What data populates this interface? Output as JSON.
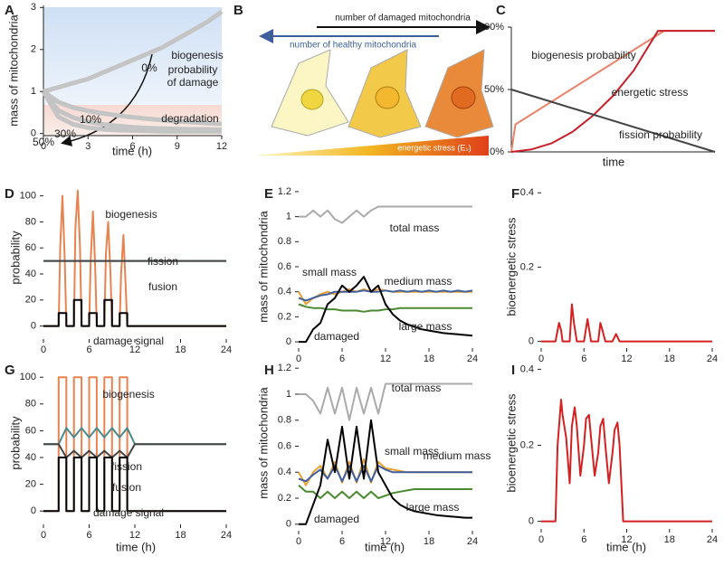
{
  "diagram": {
    "panel": "B",
    "damaged_label": "number of damaged mitochondria",
    "healthy_label": "number of healthy mitochondria",
    "stress_label": "energetic stress (Eₛ)"
  },
  "chart_data": [
    {
      "type": "line",
      "panel": "A",
      "xlabel": "time (h)",
      "ylabel": "mass of mitochondria",
      "annotations": [
        "biogenesis",
        "probability",
        "of damage",
        "degradation"
      ],
      "x": [
        0,
        1,
        2,
        3,
        4,
        5,
        6,
        7,
        8,
        9,
        10,
        11,
        12
      ],
      "xlim": [
        0,
        12
      ],
      "xticks": [
        0,
        3,
        6,
        9,
        12
      ],
      "ylim": [
        -0.05,
        3.05
      ],
      "yticks": [
        0,
        1,
        2,
        3
      ],
      "series": [
        {
          "name": "0%",
          "color": "#c4c4c4",
          "values": [
            1,
            1.1,
            1.2,
            1.3,
            1.45,
            1.6,
            1.75,
            1.9,
            2.05,
            2.25,
            2.45,
            2.65,
            2.9
          ]
        },
        {
          "name": "10%",
          "color": "#c4c4c4",
          "values": [
            1,
            0.75,
            0.62,
            0.54,
            0.48,
            0.43,
            0.39,
            0.35,
            0.32,
            0.29,
            0.27,
            0.25,
            0.23
          ]
        },
        {
          "name": "30%",
          "color": "#c4c4c4",
          "values": [
            1,
            0.55,
            0.38,
            0.28,
            0.22,
            0.18,
            0.15,
            0.13,
            0.12,
            0.11,
            0.1,
            0.1,
            0.09
          ]
        },
        {
          "name": "50%",
          "color": "#c4c4c4",
          "values": [
            1,
            0.4,
            0.22,
            0.14,
            0.1,
            0.08,
            0.07,
            0.06,
            0.05,
            0.05,
            0.05,
            0.05,
            0.05
          ]
        }
      ]
    },
    {
      "type": "line",
      "panel": "C",
      "xlabel": "time",
      "xlim": [
        0,
        1
      ],
      "ylim": [
        0,
        100
      ],
      "yticks": [
        {
          "value": 0,
          "label": "0%"
        },
        {
          "value": 50,
          "label": "50%"
        },
        {
          "value": 100,
          "label": "100%"
        }
      ],
      "series": [
        {
          "name": "biogenesis probability",
          "color": "#e8836a",
          "x": [
            0,
            0.02,
            0.75,
            1
          ],
          "values": [
            0,
            22,
            97,
            97
          ]
        },
        {
          "name": "energetic stress",
          "color": "#c8202a",
          "x": [
            0,
            0.1,
            0.2,
            0.3,
            0.4,
            0.5,
            0.6,
            0.72,
            1
          ],
          "values": [
            0,
            2,
            7,
            16,
            29,
            45,
            65,
            97,
            97
          ]
        },
        {
          "name": "fission probability",
          "color": "#444444",
          "x": [
            0,
            1
          ],
          "values": [
            50,
            0
          ]
        }
      ]
    },
    {
      "type": "line",
      "panel": "D",
      "ylabel": "probability",
      "xlim": [
        0,
        24
      ],
      "xticks": [
        0,
        6,
        12,
        18,
        24
      ],
      "ylim": [
        -10,
        115
      ],
      "yticks": [
        0,
        20,
        40,
        60,
        80,
        100
      ],
      "series": [
        {
          "name": "biogenesis",
          "color": "#e8834f",
          "x": [
            0,
            2,
            2.2,
            2.5,
            2.8,
            3,
            4,
            4.2,
            4.5,
            4.8,
            5,
            6,
            6.2,
            6.5,
            6.8,
            7,
            8,
            8.2,
            8.5,
            8.8,
            9,
            10,
            10.2,
            10.5,
            10.8,
            11,
            24
          ],
          "values": [
            0,
            0,
            60,
            100,
            50,
            0,
            0,
            75,
            104,
            60,
            0,
            0,
            50,
            88,
            45,
            0,
            0,
            55,
            80,
            40,
            0,
            0,
            40,
            70,
            30,
            0,
            0
          ]
        },
        {
          "name": "fission",
          "color": "#4a8a8c",
          "x": [
            0,
            24
          ],
          "values": [
            50,
            50
          ]
        },
        {
          "name": "fusion",
          "color": "#444444",
          "x": [
            0,
            24
          ],
          "values": [
            50,
            50
          ]
        },
        {
          "name": "damage signal",
          "color": "#000000",
          "x": [
            0,
            2,
            2,
            3,
            3,
            4,
            4,
            5,
            5,
            6,
            6,
            7,
            7,
            8,
            8,
            9,
            9,
            10,
            10,
            11,
            11,
            24
          ],
          "values": [
            0,
            0,
            10,
            10,
            0,
            0,
            20,
            20,
            0,
            0,
            10,
            10,
            0,
            0,
            20,
            20,
            0,
            0,
            10,
            10,
            0,
            0
          ]
        }
      ]
    },
    {
      "type": "line",
      "panel": "E",
      "ylabel": "mass of mitochondria",
      "x": [
        0,
        1,
        2,
        3,
        4,
        5,
        6,
        7,
        8,
        9,
        10,
        11,
        12,
        13,
        14,
        15,
        16,
        17,
        18,
        19,
        20,
        21,
        22,
        23,
        24
      ],
      "xlim": [
        0,
        24
      ],
      "xticks": [
        0,
        6,
        12,
        18,
        24
      ],
      "ylim": [
        -0.05,
        1.25
      ],
      "yticks": [
        0,
        0.2,
        0.4,
        0.6,
        0.8,
        1,
        1.2
      ],
      "series": [
        {
          "name": "total mass",
          "color": "#aaaaaa",
          "values": [
            1,
            1,
            1.05,
            1,
            1.05,
            0.98,
            0.95,
            1,
            1.05,
            1,
            1.05,
            1.08,
            1.08,
            1.08,
            1.08,
            1.08,
            1.08,
            1.08,
            1.08,
            1.08,
            1.08,
            1.08,
            1.08,
            1.08,
            1.08
          ]
        },
        {
          "name": "small mass",
          "color": "#e8a030",
          "values": [
            0.4,
            0.3,
            0.35,
            0.38,
            0.4,
            0.38,
            0.4,
            0.42,
            0.4,
            0.42,
            0.4,
            0.42,
            0.41,
            0.4,
            0.4,
            0.4,
            0.4,
            0.4,
            0.4,
            0.4,
            0.4,
            0.4,
            0.4,
            0.4,
            0.4
          ]
        },
        {
          "name": "medium mass",
          "color": "#3f5f9f",
          "values": [
            0.35,
            0.33,
            0.35,
            0.37,
            0.38,
            0.4,
            0.4,
            0.4,
            0.4,
            0.41,
            0.4,
            0.4,
            0.41,
            0.4,
            0.41,
            0.4,
            0.41,
            0.4,
            0.41,
            0.4,
            0.41,
            0.4,
            0.41,
            0.4,
            0.41
          ]
        },
        {
          "name": "large mass",
          "color": "#4a8a30",
          "values": [
            0.3,
            0.28,
            0.27,
            0.27,
            0.26,
            0.26,
            0.25,
            0.25,
            0.25,
            0.24,
            0.25,
            0.25,
            0.26,
            0.26,
            0.27,
            0.27,
            0.27,
            0.27,
            0.27,
            0.27,
            0.27,
            0.27,
            0.27,
            0.27,
            0.27
          ]
        },
        {
          "name": "damaged",
          "color": "#000000",
          "values": [
            0,
            0,
            0.1,
            0.15,
            0.3,
            0.35,
            0.45,
            0.4,
            0.45,
            0.52,
            0.4,
            0.45,
            0.3,
            0.22,
            0.17,
            0.14,
            0.12,
            0.1,
            0.09,
            0.08,
            0.07,
            0.065,
            0.06,
            0.055,
            0.05
          ]
        }
      ]
    },
    {
      "type": "line",
      "panel": "F",
      "ylabel": "bioenergetic stress",
      "xlim": [
        0,
        24
      ],
      "xticks": [
        0,
        6,
        12,
        18,
        24
      ],
      "ylim": [
        -0.018,
        0.42
      ],
      "yticks": [
        0,
        0.2,
        0.4
      ],
      "series": [
        {
          "color": "#d42020",
          "x": [
            0,
            2,
            2.5,
            2.8,
            3,
            4,
            4.3,
            4.6,
            5,
            6,
            6.5,
            7,
            8,
            8.3,
            8.6,
            9,
            10,
            10.5,
            11,
            24
          ],
          "values": [
            0,
            0,
            0.05,
            0.03,
            0,
            0,
            0.1,
            0.05,
            0,
            0,
            0.06,
            0,
            0,
            0.05,
            0.03,
            0,
            0,
            0.02,
            0,
            0
          ]
        }
      ]
    },
    {
      "type": "line",
      "panel": "G",
      "xlabel": "time (h)",
      "ylabel": "probability",
      "xlim": [
        0,
        24
      ],
      "xticks": [
        0,
        6,
        12,
        18,
        24
      ],
      "ylim": [
        -10,
        115
      ],
      "yticks": [
        0,
        20,
        40,
        60,
        80,
        100
      ],
      "series": [
        {
          "name": "biogenesis",
          "color": "#e8834f",
          "x": [
            0,
            2,
            2,
            3,
            3,
            4,
            4,
            5,
            5,
            6,
            6,
            7,
            7,
            8,
            8,
            9,
            9,
            10,
            10,
            11,
            11,
            24
          ],
          "values": [
            0,
            0,
            100,
            100,
            0,
            0,
            100,
            100,
            0,
            0,
            100,
            100,
            0,
            0,
            100,
            100,
            0,
            0,
            100,
            100,
            0,
            0
          ]
        },
        {
          "name": "fission",
          "color": "#4a8a8c",
          "x": [
            0,
            2,
            3,
            4,
            5,
            6,
            7,
            8,
            9,
            10,
            11,
            12,
            24
          ],
          "values": [
            50,
            50,
            62,
            55,
            62,
            55,
            62,
            55,
            62,
            55,
            62,
            50,
            50
          ]
        },
        {
          "name": "fusion",
          "color": "#444444",
          "x": [
            0,
            2,
            3,
            4,
            5,
            6,
            7,
            8,
            9,
            10,
            11,
            12,
            24
          ],
          "values": [
            50,
            50,
            40,
            45,
            40,
            45,
            40,
            45,
            40,
            45,
            40,
            50,
            50
          ]
        },
        {
          "name": "damage signal",
          "color": "#000000",
          "x": [
            0,
            2,
            2,
            3,
            3,
            4,
            4,
            5,
            5,
            6,
            6,
            7,
            7,
            8,
            8,
            9,
            9,
            10,
            10,
            11,
            11,
            24
          ],
          "values": [
            0,
            0,
            40,
            40,
            0,
            0,
            40,
            40,
            0,
            0,
            40,
            40,
            0,
            0,
            40,
            40,
            0,
            0,
            40,
            40,
            0,
            0
          ]
        }
      ]
    },
    {
      "type": "line",
      "panel": "H",
      "xlabel": "time (h)",
      "ylabel": "mass of mitochondria",
      "x": [
        0,
        1,
        2,
        3,
        4,
        5,
        6,
        7,
        8,
        9,
        10,
        11,
        12,
        13,
        14,
        15,
        16,
        17,
        18,
        19,
        20,
        21,
        22,
        23,
        24
      ],
      "xlim": [
        0,
        24
      ],
      "xticks": [
        0,
        6,
        12,
        18,
        24
      ],
      "ylim": [
        -0.05,
        1.25
      ],
      "yticks": [
        0,
        0.2,
        0.4,
        0.6,
        0.8,
        1,
        1.2
      ],
      "series": [
        {
          "name": "total mass",
          "color": "#aaaaaa",
          "values": [
            1,
            1,
            0.95,
            0.85,
            1.05,
            0.85,
            1.05,
            0.8,
            1.05,
            0.85,
            1.05,
            0.85,
            1.08,
            1.08,
            1.08,
            1.08,
            1.08,
            1.08,
            1.08,
            1.08,
            1.08,
            1.08,
            1.08,
            1.08,
            1.08
          ]
        },
        {
          "name": "small mass",
          "color": "#e8a030",
          "values": [
            0.4,
            0.3,
            0.4,
            0.45,
            0.35,
            0.48,
            0.32,
            0.48,
            0.32,
            0.5,
            0.32,
            0.48,
            0.43,
            0.42,
            0.41,
            0.4,
            0.4,
            0.4,
            0.4,
            0.4,
            0.4,
            0.4,
            0.4,
            0.4,
            0.4
          ]
        },
        {
          "name": "medium mass",
          "color": "#3f5f9f",
          "values": [
            0.35,
            0.33,
            0.38,
            0.42,
            0.35,
            0.45,
            0.33,
            0.45,
            0.33,
            0.45,
            0.33,
            0.45,
            0.42,
            0.4,
            0.4,
            0.4,
            0.4,
            0.4,
            0.4,
            0.4,
            0.4,
            0.4,
            0.4,
            0.4,
            0.4
          ]
        },
        {
          "name": "large mass",
          "color": "#4a8a30",
          "values": [
            0.3,
            0.25,
            0.25,
            0.2,
            0.25,
            0.2,
            0.25,
            0.2,
            0.25,
            0.2,
            0.25,
            0.2,
            0.22,
            0.24,
            0.25,
            0.26,
            0.27,
            0.27,
            0.27,
            0.27,
            0.27,
            0.27,
            0.27,
            0.27,
            0.27
          ]
        },
        {
          "name": "damaged",
          "color": "#000000",
          "values": [
            0,
            0,
            0.15,
            0.3,
            0.65,
            0.4,
            0.75,
            0.35,
            0.75,
            0.35,
            0.8,
            0.4,
            0.3,
            0.2,
            0.15,
            0.12,
            0.1,
            0.09,
            0.08,
            0.07,
            0.065,
            0.06,
            0.055,
            0.05,
            0.05
          ]
        }
      ]
    },
    {
      "type": "line",
      "panel": "I",
      "xlabel": "time (h)",
      "ylabel": "bioenergetic stress",
      "xlim": [
        0,
        24
      ],
      "xticks": [
        0,
        6,
        12,
        18,
        24
      ],
      "ylim": [
        -0.02,
        0.42
      ],
      "yticks": [
        0,
        0.2,
        0.4
      ],
      "series": [
        {
          "color": "#d42020",
          "x": [
            0,
            2,
            2.3,
            2.8,
            3,
            3.5,
            4,
            4.3,
            4.7,
            5,
            5.5,
            6,
            6.3,
            6.7,
            7,
            7.5,
            8,
            8.3,
            8.7,
            9,
            9.5,
            10,
            10.3,
            10.7,
            11,
            11.5,
            24
          ],
          "values": [
            0,
            0,
            0.2,
            0.32,
            0.28,
            0.22,
            0.1,
            0.25,
            0.3,
            0.25,
            0.12,
            0.2,
            0.27,
            0.28,
            0.22,
            0.12,
            0.18,
            0.25,
            0.27,
            0.2,
            0.1,
            0.18,
            0.24,
            0.26,
            0.2,
            0,
            0
          ]
        }
      ]
    }
  ]
}
